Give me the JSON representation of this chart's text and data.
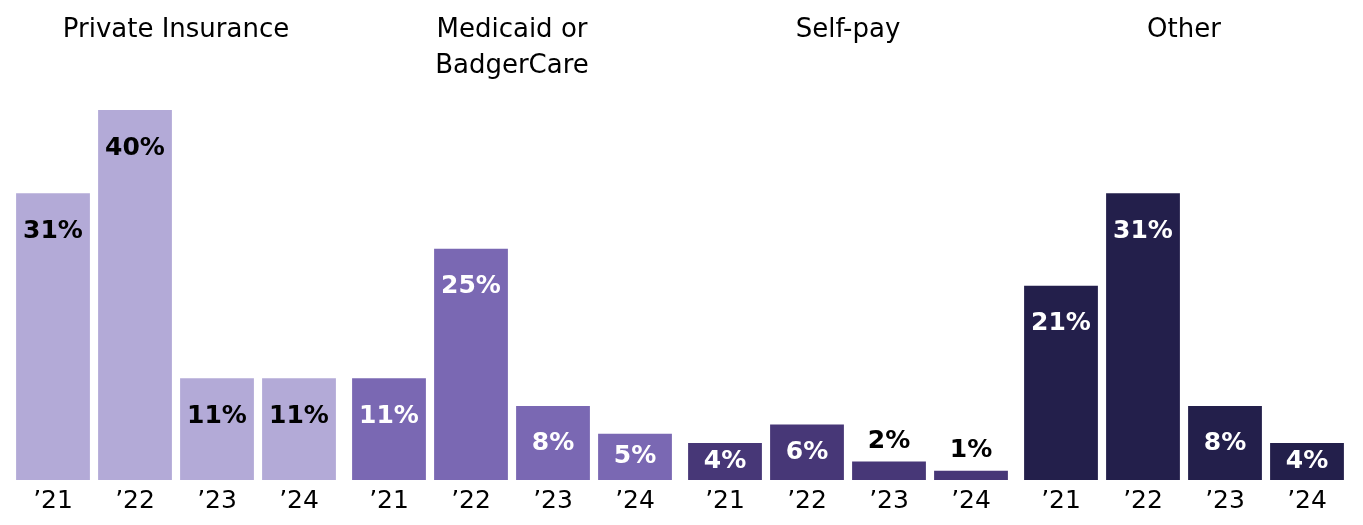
{
  "chart_data": [
    {
      "type": "bar",
      "title": "Private Insurance",
      "categories": [
        "’21",
        "’22",
        "’23",
        "’24"
      ],
      "values": [
        31,
        40,
        11,
        11
      ],
      "value_labels": [
        "31%",
        "40%",
        "11%",
        "11%"
      ],
      "color": "#b3aad7",
      "tick_labels": "x",
      "grid": false,
      "legend": false
    },
    {
      "type": "bar",
      "title": "Medicaid or BadgerCare",
      "categories": [
        "’21",
        "’22",
        "’23",
        "’24"
      ],
      "values": [
        11,
        25,
        8,
        5
      ],
      "value_labels": [
        "11%",
        "25%",
        "8%",
        "5%"
      ],
      "color": "#7a68b3",
      "tick_labels": "x",
      "grid": false,
      "legend": false
    },
    {
      "type": "bar",
      "title": "Self-pay",
      "categories": [
        "’21",
        "’22",
        "’23",
        "’24"
      ],
      "values": [
        4,
        6,
        2,
        1
      ],
      "value_labels": [
        "4%",
        "6%",
        "2%",
        "1%"
      ],
      "color": "#473777",
      "tick_labels": "x",
      "grid": false,
      "legend": false
    },
    {
      "type": "bar",
      "title": "Other",
      "categories": [
        "’21",
        "’22",
        "’23",
        "’24"
      ],
      "values": [
        21,
        31,
        8,
        4
      ],
      "value_labels": [
        "21%",
        "31%",
        "8%",
        "4%"
      ],
      "color": "#231f4b",
      "tick_labels": "x",
      "grid": false,
      "legend": false
    }
  ]
}
